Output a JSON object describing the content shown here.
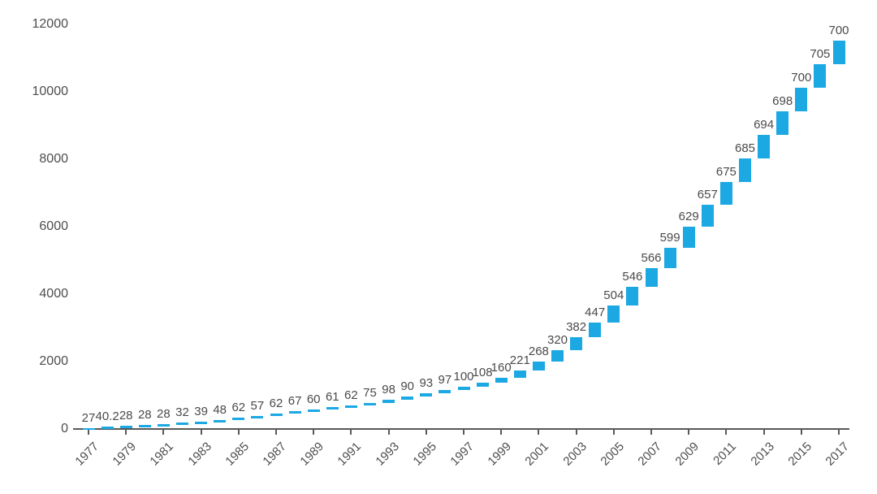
{
  "chart_data": {
    "type": "bar",
    "subtype": "waterfall-cumulative",
    "title": "",
    "xlabel": "",
    "ylabel": "",
    "x": [
      1977,
      1978,
      1979,
      1980,
      1981,
      1982,
      1983,
      1984,
      1985,
      1986,
      1987,
      1988,
      1989,
      1990,
      1991,
      1992,
      1993,
      1994,
      1995,
      1996,
      1997,
      1998,
      1999,
      2000,
      2001,
      2002,
      2003,
      2004,
      2005,
      2006,
      2007,
      2008,
      2009,
      2010,
      2011,
      2012,
      2013,
      2014,
      2015,
      2016,
      2017
    ],
    "series": [
      {
        "name": "annual-increment",
        "values": [
          27,
          40.2,
          28,
          28,
          28,
          32,
          39,
          48,
          62,
          57,
          62,
          67,
          60,
          61,
          62,
          75,
          98,
          90,
          93,
          97,
          100,
          108,
          160,
          221,
          268,
          320,
          382,
          447,
          504,
          546,
          566,
          599,
          629,
          657,
          675,
          685,
          694,
          698,
          700,
          705,
          700
        ]
      }
    ],
    "labels": [
      "27",
      "40.2",
      "28",
      "28",
      "28",
      "32",
      "39",
      "48",
      "62",
      "57",
      "62",
      "67",
      "60",
      "61",
      "62",
      "75",
      "98",
      "90",
      "93",
      "97",
      "100",
      "108",
      "160",
      "221",
      "268",
      "320",
      "382",
      "447",
      "504",
      "546",
      "566",
      "599",
      "629",
      "657",
      "675",
      "685",
      "694",
      "698",
      "700",
      "705",
      "700"
    ],
    "cumulative_final": 11518.2,
    "ylim": [
      0,
      12000
    ],
    "y_ticks": [
      0,
      2000,
      4000,
      6000,
      8000,
      10000,
      12000
    ],
    "y_tick_labels": [
      "0",
      "2000",
      "4000",
      "6000",
      "8000",
      "10000",
      "12000"
    ],
    "x_tick_labels": [
      "1977",
      "1979",
      "1981",
      "1983",
      "1985",
      "1987",
      "1989",
      "1991",
      "1993",
      "1995",
      "1997",
      "1999",
      "2001",
      "2003",
      "2005",
      "2007",
      "2009",
      "2011",
      "2013",
      "2015",
      "2017"
    ],
    "grid": false,
    "legend": false,
    "bar_color": "#1ca8e3",
    "axis_color": "#595959",
    "label_color": "#4a4a4a"
  }
}
